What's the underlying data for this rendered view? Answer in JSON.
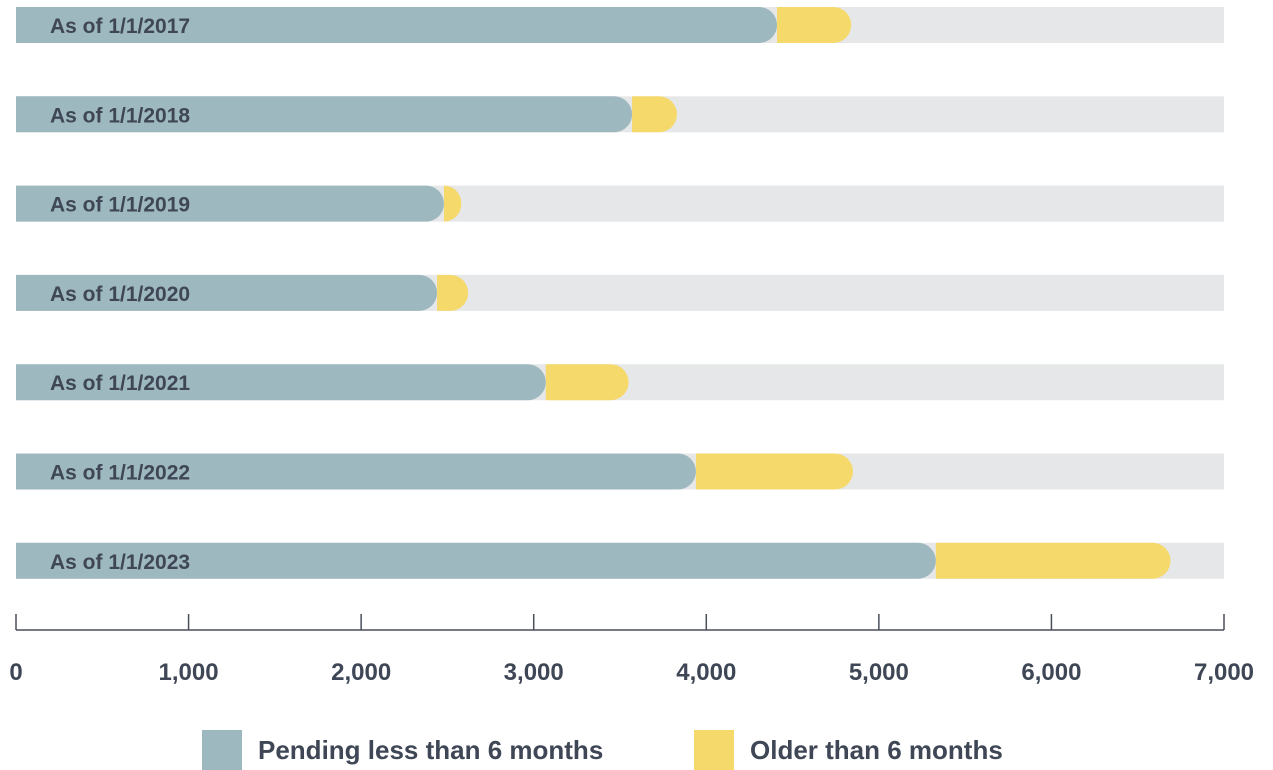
{
  "chart_data": {
    "type": "bar",
    "orientation": "horizontal",
    "stacked": true,
    "categories": [
      "As of 1/1/2017",
      "As of 1/1/2018",
      "As of 1/1/2019",
      "As of 1/1/2020",
      "As of 1/1/2021",
      "As of 1/1/2022",
      "As of 1/1/2023"
    ],
    "series": [
      {
        "name": "Pending less than 6 months",
        "color": "#9eb8bf",
        "values": [
          4410,
          3570,
          2480,
          2440,
          3070,
          3940,
          5330
        ]
      },
      {
        "name": "Older than 6 months",
        "color": "#f6d96b",
        "values": [
          430,
          260,
          100,
          180,
          480,
          910,
          1360
        ]
      }
    ],
    "xlim": [
      0,
      7000
    ],
    "x_ticks": [
      "0",
      "1,000",
      "2,000",
      "3,000",
      "4,000",
      "5,000",
      "6,000",
      "7,000"
    ],
    "track_color": "#e6e7e8",
    "legend_position": "bottom",
    "grid": false
  }
}
